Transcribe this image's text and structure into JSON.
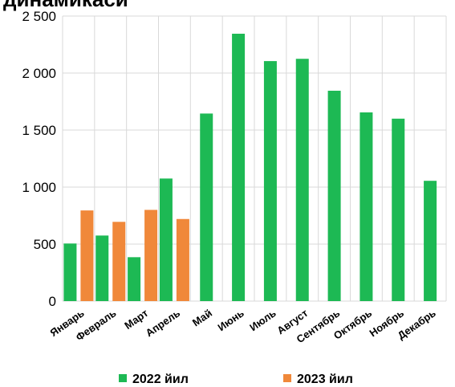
{
  "chart_data": {
    "type": "bar",
    "title": "динамикаси",
    "categories": [
      "Январь",
      "Февраль",
      "Март",
      "Апрель",
      "Май",
      "Июнь",
      "Июль",
      "Август",
      "Сентябрь",
      "Октябрь",
      "Ноябрь",
      "Декабрь"
    ],
    "series": [
      {
        "name": "2022 йил",
        "color": "#1db954",
        "values": [
          505,
          575,
          385,
          1075,
          1645,
          2345,
          2105,
          2125,
          1845,
          1655,
          1600,
          1055
        ]
      },
      {
        "name": "2023 йил",
        "color": "#f0883a",
        "values": [
          795,
          695,
          800,
          720,
          null,
          null,
          null,
          null,
          null,
          null,
          null,
          null
        ]
      }
    ],
    "ylim": [
      0,
      2500
    ],
    "yticks": [
      0,
      500,
      1000,
      1500,
      2000,
      2500
    ],
    "ytick_labels": [
      "0",
      "500",
      "1 000",
      "1 500",
      "2 000",
      "2 500"
    ],
    "grid": true,
    "legend_position": "bottom"
  }
}
